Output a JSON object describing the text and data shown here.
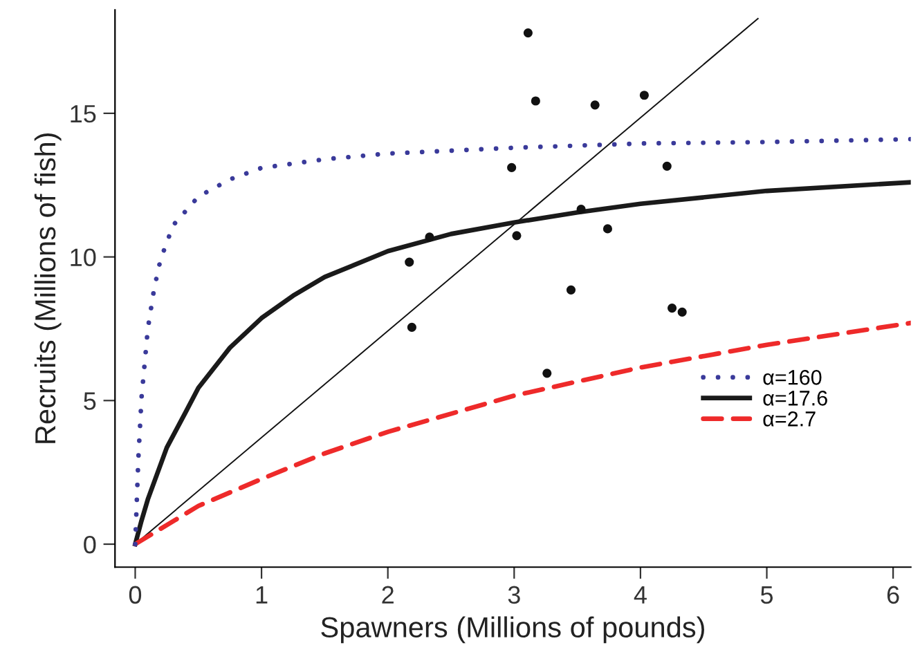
{
  "chart_data": {
    "type": "line",
    "xlabel": "Spawners (Millions of pounds)",
    "ylabel": "Recruits (Millions of fish)",
    "xlim": [
      -0.16,
      6.14
    ],
    "ylim": [
      -0.8,
      18.6
    ],
    "xticks": [
      0,
      1,
      2,
      3,
      4,
      5,
      6
    ],
    "yticks": [
      0,
      5,
      10,
      15
    ],
    "grid": false,
    "legend": "right",
    "series": [
      {
        "type": "scatter",
        "color": "#111111",
        "marker": "circle",
        "x": [
          3.11,
          3.17,
          3.64,
          4.03,
          2.98,
          4.21,
          2.17,
          2.33,
          3.02,
          3.53,
          3.74,
          2.19,
          3.45,
          3.26,
          4.25,
          4.33
        ],
        "values": [
          17.8,
          15.43,
          15.29,
          15.63,
          13.11,
          13.16,
          9.82,
          10.69,
          10.74,
          11.66,
          10.98,
          7.55,
          8.85,
          5.95,
          8.22,
          8.08
        ]
      },
      {
        "color": "#111111",
        "line_style": "solid",
        "x": [
          0,
          4.93
        ],
        "values": [
          0,
          18.3
        ]
      },
      {
        "name": "α=160",
        "color": "#3a3a9a",
        "line_style": "dotted",
        "x": [
          0,
          0.025,
          0.05,
          0.1,
          0.15,
          0.2,
          0.3,
          0.5,
          0.75,
          1,
          1.5,
          2,
          3,
          4,
          5,
          6.14
        ],
        "values": [
          0,
          3.0,
          5.1,
          7.5,
          8.9,
          9.9,
          11.1,
          12.1,
          12.7,
          13.1,
          13.4,
          13.6,
          13.8,
          13.95,
          14.0,
          14.1
        ]
      },
      {
        "name": "α=17.6",
        "color": "#1a1a1a",
        "line_style": "solid",
        "x": [
          0,
          0.05,
          0.1,
          0.25,
          0.4,
          0.5,
          0.75,
          1,
          1.25,
          1.5,
          2,
          2.5,
          3,
          3.5,
          4,
          5,
          6.14
        ],
        "values": [
          0,
          0.82,
          1.56,
          3.36,
          4.6,
          5.44,
          6.84,
          7.87,
          8.65,
          9.3,
          10.2,
          10.8,
          11.2,
          11.55,
          11.85,
          12.3,
          12.6
        ]
      },
      {
        "name": "α=2.7",
        "color": "#ee2a2a",
        "line_style": "dashed",
        "x": [
          0,
          0.5,
          1,
          1.5,
          2,
          3,
          4,
          5,
          6.14
        ],
        "values": [
          0,
          1.33,
          2.27,
          3.16,
          3.91,
          5.17,
          6.15,
          6.94,
          7.7
        ]
      }
    ]
  }
}
